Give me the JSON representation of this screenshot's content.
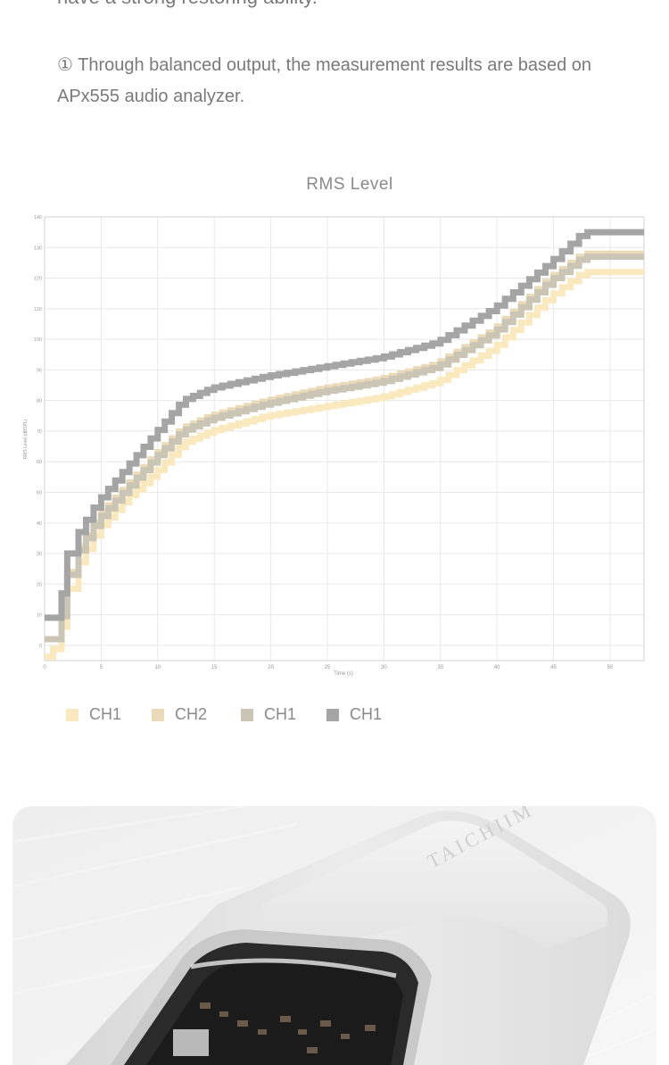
{
  "header": {
    "cut_text": "have a strong restoring ability.",
    "note": "① Through balanced output, the measurement results are based on APx555 audio analyzer."
  },
  "chart_data": {
    "type": "line",
    "title": "RMS Level",
    "xlabel": "Time (s)",
    "ylabel": "RMS Level (dBSPL)",
    "xlim": [
      0,
      53
    ],
    "ylim": [
      -5,
      140
    ],
    "x_ticks": [
      0,
      5,
      10,
      15,
      20,
      25,
      30,
      35,
      40,
      45,
      50
    ],
    "y_ticks": [
      0,
      10,
      20,
      30,
      40,
      50,
      60,
      70,
      80,
      90,
      100,
      110,
      120,
      130,
      140
    ],
    "grid": true,
    "legend_position": "bottom-left",
    "series": [
      {
        "name": "CH1",
        "color": "#fae9bf",
        "x": [
          0,
          1.5,
          2.0,
          3.0,
          5.0,
          7.5,
          10,
          12.5,
          15,
          20,
          25,
          30,
          35,
          40,
          45,
          48,
          53
        ],
        "y": [
          -5,
          0,
          12,
          25,
          38,
          48,
          56,
          66,
          70,
          75,
          78,
          81,
          86,
          97,
          114,
          122,
          122
        ]
      },
      {
        "name": "CH2",
        "color": "#ebdab8",
        "x": [
          0,
          1.5,
          2.0,
          3.0,
          5.0,
          7.5,
          10,
          12.5,
          15,
          20,
          25,
          30,
          35,
          40,
          45,
          48,
          53
        ],
        "y": [
          2,
          2,
          18,
          30,
          42,
          52,
          62,
          71,
          75,
          80,
          84,
          87,
          92,
          103,
          120,
          128,
          128
        ]
      },
      {
        "name": "CH1",
        "color": "#cbc5b5",
        "x": [
          0,
          1.5,
          2.0,
          3.0,
          5.0,
          7.5,
          10,
          12.5,
          15,
          20,
          25,
          30,
          35,
          40,
          45,
          48,
          53
        ],
        "y": [
          2,
          2,
          17,
          29,
          41,
          51,
          61,
          70,
          74,
          79,
          83,
          86,
          91,
          102,
          119,
          127,
          127
        ]
      },
      {
        "name": "CH1",
        "color": "#a5a5a5",
        "x": [
          0,
          1.5,
          2.0,
          3.0,
          5.0,
          7.5,
          10,
          12.5,
          15,
          20,
          25,
          30,
          35,
          40,
          45,
          48,
          53
        ],
        "y": [
          9,
          9,
          25,
          35,
          47,
          58,
          69,
          80,
          84,
          88,
          91,
          94,
          99,
          110,
          125,
          135,
          135
        ]
      }
    ]
  },
  "legend": [
    {
      "label": "CH1",
      "color": "#fae9bf"
    },
    {
      "label": "CH2",
      "color": "#ebdab8"
    },
    {
      "label": "CH1",
      "color": "#cbc5b5"
    },
    {
      "label": "CH1",
      "color": "#a5a5a5"
    }
  ],
  "photo": {
    "brand_text": "TAICHIIM"
  }
}
